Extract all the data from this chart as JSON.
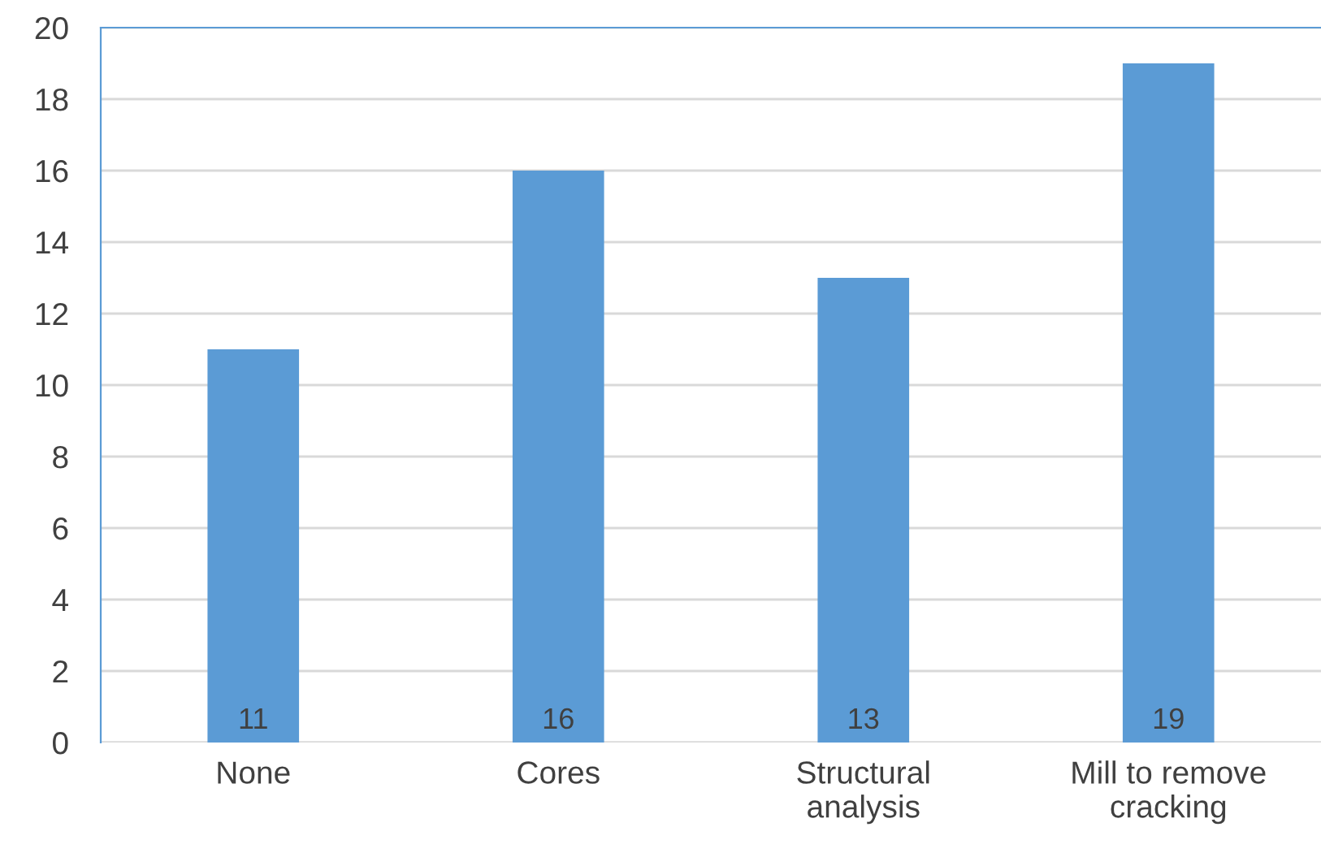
{
  "chart_data": {
    "type": "bar",
    "categories": [
      "None",
      "Cores",
      "Structural\nanalysis",
      "Mill to remove\ncracking"
    ],
    "values": [
      11,
      16,
      13,
      19
    ],
    "color": "#5b9bd5",
    "ylim": [
      0,
      20
    ],
    "yticks": [
      0,
      2,
      4,
      6,
      8,
      10,
      12,
      14,
      16,
      18,
      20
    ],
    "grid": "y",
    "data_labels": true
  }
}
